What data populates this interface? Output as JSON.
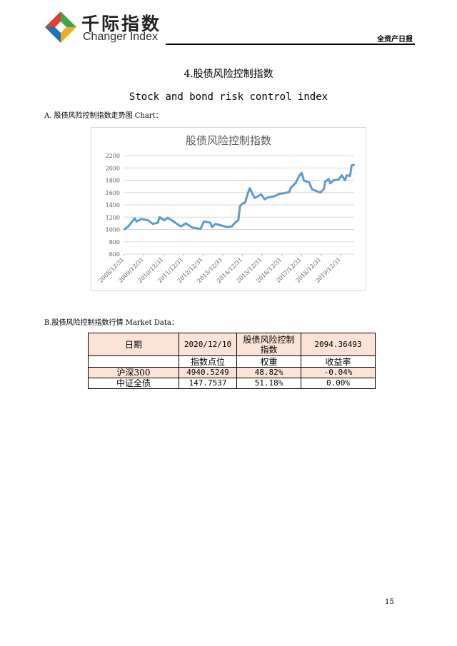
{
  "header": {
    "brand_cn": "千际指数",
    "brand_en": "Changer Index",
    "report_name": "全资产日报",
    "logo_colors": [
      "#e03c31",
      "#3aa54b",
      "#1c75bc",
      "#f7a823"
    ]
  },
  "section": {
    "title_cn": "4.股债风险控制指数",
    "title_en": "Stock and bond risk control index",
    "chart_heading": "A. 股债风险控制指数走势图 Chart：",
    "table_heading": "B.股债风险控制指数行情 Market Data："
  },
  "chart_data": {
    "type": "line",
    "title": "股债风险控制指数",
    "ylim": [
      600,
      2200
    ],
    "yticks": [
      "600",
      "800",
      "1000",
      "1200",
      "1400",
      "1600",
      "1800",
      "2000",
      "2200"
    ],
    "xticks": [
      "2008/12/31",
      "2009/12/31",
      "2010/12/31",
      "2011/12/31",
      "2012/12/31",
      "2013/12/31",
      "2014/12/31",
      "2015/12/31",
      "2016/12/31",
      "2017/12/31",
      "2018/12/31",
      "2019/12/31"
    ],
    "grid": true,
    "line_color": "#5b9bd5",
    "x": [
      "2008/12/31",
      "2009/03/15",
      "2009/07/15",
      "2009/08/15",
      "2009/11/15",
      "2010/03/15",
      "2010/06/15",
      "2010/09/15",
      "2010/10/15",
      "2011/01/15",
      "2011/03/15",
      "2011/06/15",
      "2011/11/15",
      "2012/02/15",
      "2012/06/15",
      "2012/11/15",
      "2013/01/15",
      "2013/05/15",
      "2013/06/15",
      "2013/08/15",
      "2013/11/15",
      "2014/03/15",
      "2014/06/15",
      "2014/08/15",
      "2014/10/15",
      "2014/11/15",
      "2015/01/15",
      "2015/02/15",
      "2015/04/15",
      "2015/05/15",
      "2015/07/15",
      "2015/08/15",
      "2015/12/15",
      "2016/02/15",
      "2016/04/15",
      "2016/08/15",
      "2016/11/15",
      "2017/02/15",
      "2017/05/15",
      "2017/06/15",
      "2017/09/15",
      "2017/11/15",
      "2017/12/31",
      "2018/02/15",
      "2018/05/15",
      "2018/07/15",
      "2018/12/15",
      "2019/02/15",
      "2019/03/15",
      "2019/05/15",
      "2019/06/15",
      "2019/08/15",
      "2019/11/15",
      "2020/01/15",
      "2020/03/15",
      "2020/04/15",
      "2020/06/15",
      "2020/07/15",
      "2020/08/31"
    ],
    "values": [
      1000,
      1050,
      1180,
      1130,
      1170,
      1150,
      1090,
      1110,
      1200,
      1150,
      1190,
      1140,
      1050,
      1100,
      1030,
      1010,
      1130,
      1110,
      1040,
      1090,
      1070,
      1040,
      1050,
      1110,
      1150,
      1380,
      1430,
      1430,
      1600,
      1670,
      1560,
      1510,
      1570,
      1490,
      1520,
      1540,
      1580,
      1590,
      1610,
      1680,
      1760,
      1870,
      1920,
      1790,
      1770,
      1650,
      1600,
      1660,
      1780,
      1820,
      1750,
      1800,
      1810,
      1880,
      1800,
      1880,
      1870,
      2040,
      2050
    ]
  },
  "table": {
    "header": [
      "日期",
      "2020/12/10",
      "股债风险控制指数",
      "2094.36493"
    ],
    "subheader": [
      "",
      "指数点位",
      "权重",
      "收益率"
    ],
    "rows": [
      [
        "沪深300",
        "4940.5249",
        "48.82%",
        "-0.04%"
      ],
      [
        "中证全债",
        "147.7537",
        "51.18%",
        "0.00%"
      ]
    ]
  },
  "page_number": "15"
}
